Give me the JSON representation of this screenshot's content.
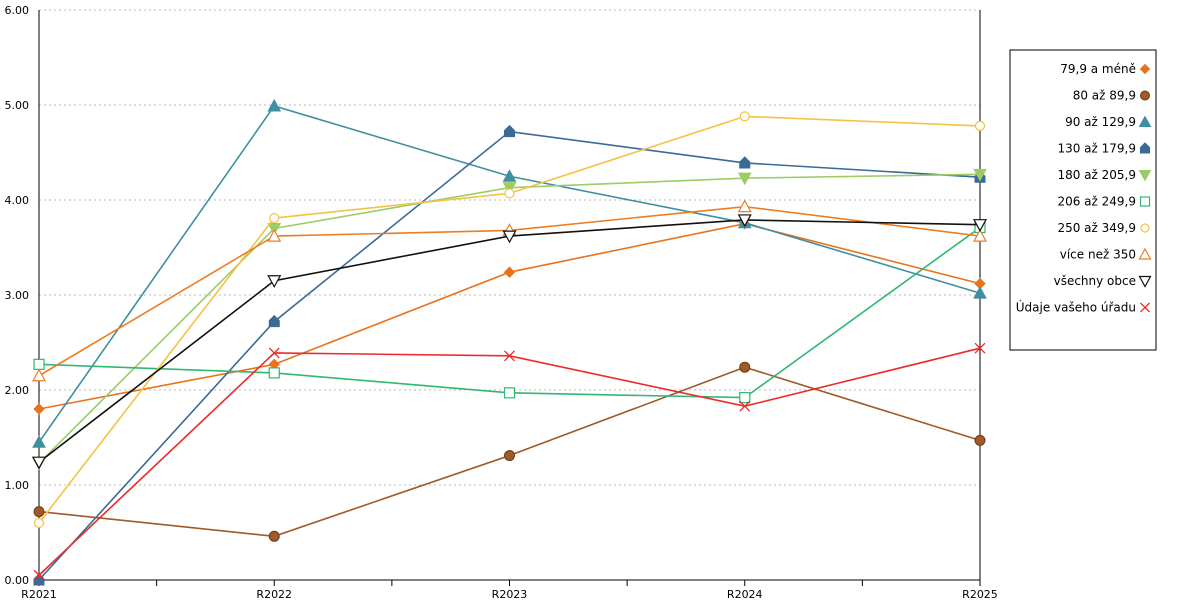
{
  "chart_data": {
    "type": "line",
    "title": "",
    "xlabel": "",
    "ylabel": "",
    "categories": [
      "R2021",
      "R2022",
      "R2023",
      "R2024",
      "R2025"
    ],
    "ylim": [
      0,
      6
    ],
    "y_ticks": [
      "0.00",
      "1.00",
      "2.00",
      "3.00",
      "4.00",
      "5.00",
      "6.00"
    ],
    "grid": "horizontal dotted",
    "legend_position": "right",
    "series": [
      {
        "name": "79,9 a méně",
        "color": "#e8731c",
        "marker": "diamond",
        "values": [
          1.8,
          2.27,
          3.24,
          3.75,
          3.12
        ]
      },
      {
        "name": "80 až 89,9",
        "color": "#a05a28",
        "marker": "circle-filled",
        "values": [
          0.72,
          0.46,
          1.31,
          2.24,
          1.47
        ]
      },
      {
        "name": "90 až 129,9",
        "color": "#3f8fa0",
        "marker": "triangle-filled",
        "values": [
          1.45,
          4.99,
          4.25,
          3.76,
          3.02
        ]
      },
      {
        "name": "130 až 179,9",
        "color": "#3a6a96",
        "marker": "pentagon-filled",
        "values": [
          0.0,
          2.72,
          4.72,
          4.39,
          4.24
        ]
      },
      {
        "name": "180 až 205,9",
        "color": "#9ccc65",
        "marker": "triangle-down-filled",
        "values": [
          1.23,
          3.7,
          4.13,
          4.23,
          4.27
        ]
      },
      {
        "name": "206 až 249,9",
        "color": "#2eb872",
        "marker": "square-open",
        "values": [
          2.27,
          2.18,
          1.97,
          1.92,
          3.71
        ]
      },
      {
        "name": "250 až 349,9",
        "color": "#f5c242",
        "marker": "circle-open",
        "values": [
          0.6,
          3.81,
          4.07,
          4.88,
          4.78
        ]
      },
      {
        "name": "více než 350",
        "color": "#ee7d22",
        "marker": "triangle-open",
        "values": [
          2.15,
          3.62,
          3.68,
          3.93,
          3.62
        ]
      },
      {
        "name": "všechny obce",
        "color": "#111111",
        "marker": "triangle-down-open",
        "values": [
          1.24,
          3.15,
          3.62,
          3.79,
          3.74
        ]
      },
      {
        "name": "Údaje vašeho úřadu",
        "color": "#ee2a2a",
        "marker": "x",
        "values": [
          0.05,
          2.39,
          2.36,
          1.83,
          2.44
        ]
      }
    ]
  }
}
